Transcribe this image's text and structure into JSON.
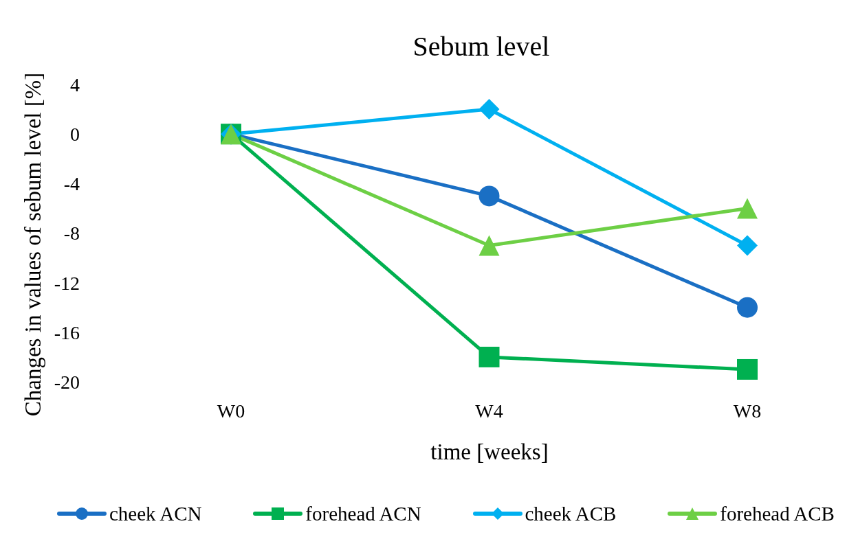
{
  "chart_data": {
    "type": "line",
    "title": "Sebum level",
    "xlabel": "time [weeks]",
    "ylabel": "Changes in values of sebum level [%]",
    "categories": [
      "W0",
      "W4",
      "W8"
    ],
    "series": [
      {
        "name": "cheek ACN",
        "color": "#1a6fc4",
        "marker": "circle",
        "values": [
          0,
          -5,
          -14
        ]
      },
      {
        "name": "forehead ACN",
        "color": "#00b050",
        "marker": "square",
        "values": [
          0,
          -18,
          -19
        ]
      },
      {
        "name": "cheek ACB",
        "color": "#00b0f0",
        "marker": "diamond",
        "values": [
          0,
          2,
          -9
        ]
      },
      {
        "name": "forehead ACB",
        "color": "#6dcf45",
        "marker": "triangle",
        "values": [
          0,
          -9,
          -6
        ]
      }
    ],
    "ylim": [
      -20,
      4
    ],
    "yticks": [
      -20,
      -16,
      -12,
      -8,
      -4,
      0,
      4
    ],
    "legend": "bottom",
    "line_style": "solid"
  }
}
